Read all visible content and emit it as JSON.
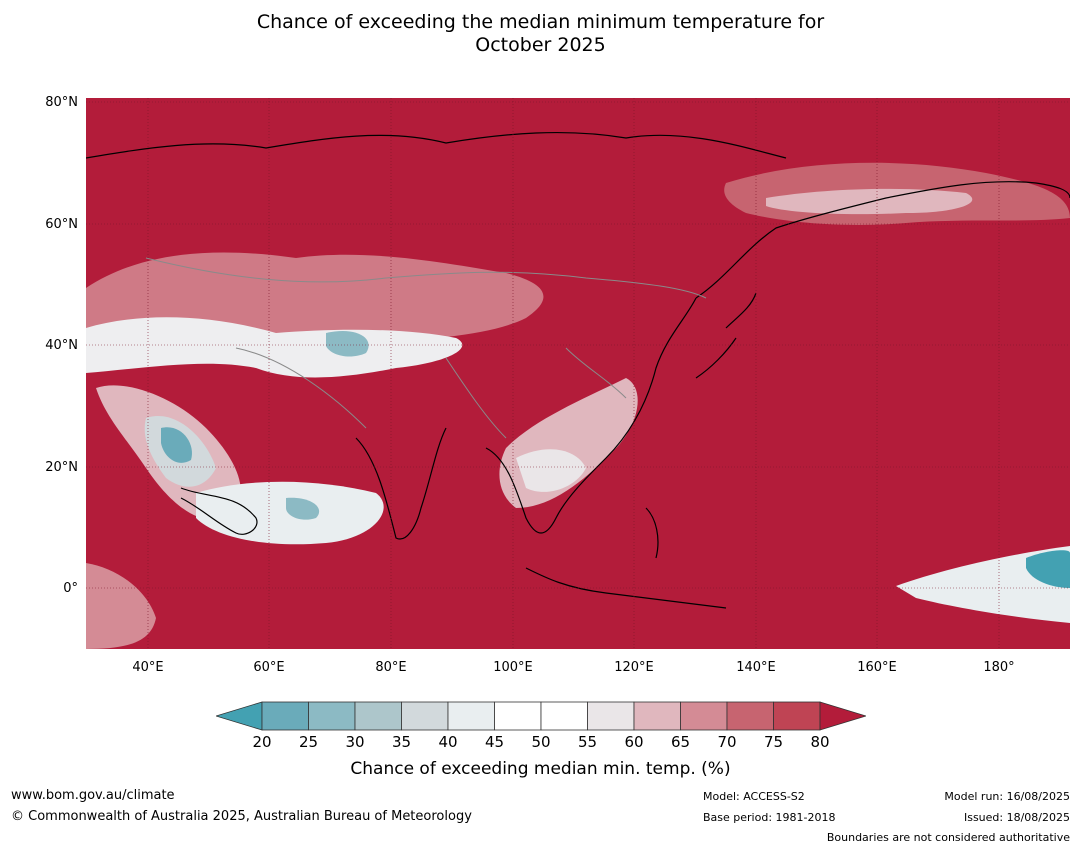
{
  "title": {
    "line1": "Chance of exceeding the median minimum temperature for",
    "line2": "October 2025"
  },
  "map": {
    "lat_labels": [
      "80°N",
      "60°N",
      "40°N",
      "20°N",
      "0°"
    ],
    "lon_labels": [
      "40°E",
      "60°E",
      "80°E",
      "100°E",
      "120°E",
      "140°E",
      "160°E",
      "180°"
    ],
    "background_color": "#b31c3a"
  },
  "colorbar": {
    "ticks": [
      "20",
      "25",
      "30",
      "35",
      "40",
      "45",
      "50",
      "55",
      "60",
      "65",
      "70",
      "75",
      "80"
    ],
    "colors": [
      "#43a1b2",
      "#6aabba",
      "#8cbac4",
      "#adc6cb",
      "#d2d9dc",
      "#e9eef0",
      "#ffffff",
      "#ffffff",
      "#eae6e8",
      "#e0b7be",
      "#d48b95",
      "#c76470",
      "#bf4454",
      "#b31c3a"
    ],
    "label": "Chance of exceeding median min. temp. (%)"
  },
  "footer": {
    "url": "www.bom.gov.au/climate",
    "copyright": "© Commonwealth of Australia 2025, Australian Bureau of Meteorology",
    "model": "Model: ACCESS-S2",
    "base_period": "Base period: 1981-2018",
    "model_run": "Model run: 16/08/2025",
    "issued": "Issued: 18/08/2025",
    "boundaries": "Boundaries are not considered authoritative"
  }
}
